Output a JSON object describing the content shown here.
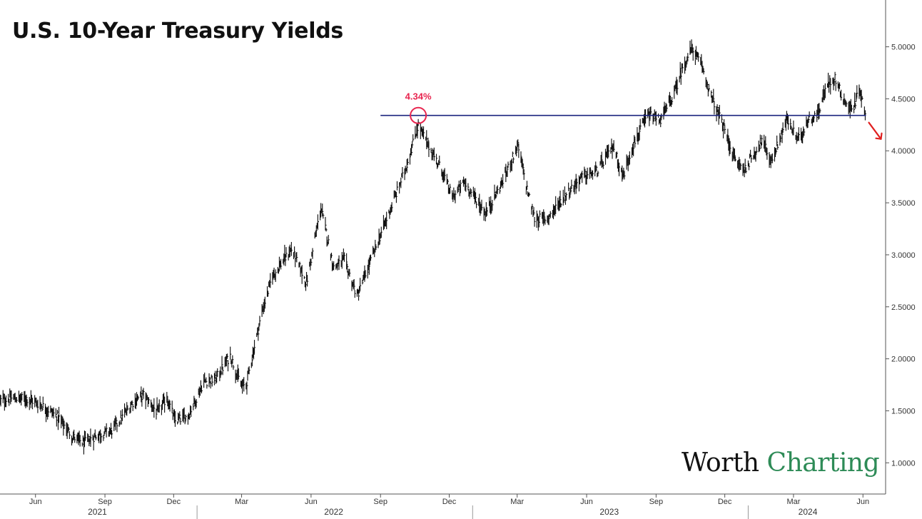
{
  "title": "U.S. 10-Year Treasury Yields",
  "watermark": {
    "part1": "Worth",
    "part2": "Charting",
    "color1": "#111111",
    "color2": "#2e8b57"
  },
  "colors": {
    "price": "#111111",
    "level_line": "#1a237e",
    "highlight": "#e8254f",
    "down_arrow": "#e02020",
    "axis": "#555555"
  },
  "chart_data": {
    "type": "line",
    "style": "daily high-low bar chart",
    "title": "U.S. 10-Year Treasury Yields",
    "xlabel": "",
    "ylabel": "",
    "y_axis_position": "right",
    "ylim": [
      0.7,
      5.45
    ],
    "y_ticks": [
      "1.0000",
      "1.5000",
      "2.0000",
      "2.5000",
      "3.0000",
      "3.5000",
      "4.0000",
      "4.5000",
      "5.0000"
    ],
    "x_range": [
      "2021-04-15",
      "2024-07-01"
    ],
    "x_ticks": [
      {
        "date": "2021-06-01",
        "label": "Jun"
      },
      {
        "date": "2021-09-01",
        "label": "Sep"
      },
      {
        "date": "2021-12-01",
        "label": "Dec"
      },
      {
        "date": "2022-03-01",
        "label": "Mar"
      },
      {
        "date": "2022-06-01",
        "label": "Jun"
      },
      {
        "date": "2022-09-01",
        "label": "Sep"
      },
      {
        "date": "2022-12-01",
        "label": "Dec"
      },
      {
        "date": "2023-03-01",
        "label": "Mar"
      },
      {
        "date": "2023-06-01",
        "label": "Jun"
      },
      {
        "date": "2023-09-01",
        "label": "Sep"
      },
      {
        "date": "2023-12-01",
        "label": "Dec"
      },
      {
        "date": "2024-03-01",
        "label": "Mar"
      },
      {
        "date": "2024-06-01",
        "label": "Jun"
      }
    ],
    "years": [
      {
        "label": "2021",
        "center": "2021-08-22"
      },
      {
        "label": "2022",
        "center": "2022-07-01"
      },
      {
        "label": "2023",
        "center": "2023-07-01"
      },
      {
        "label": "2024",
        "center": "2024-03-20"
      }
    ],
    "year_dividers": [
      "2022-01-01",
      "2023-01-01",
      "2024-01-01"
    ],
    "series": [
      {
        "x": [
          "2021-04-15",
          "2021-05-01",
          "2021-05-20",
          "2021-06-10",
          "2021-07-01",
          "2021-07-20",
          "2021-08-04",
          "2021-08-20",
          "2021-09-10",
          "2021-09-22",
          "2021-10-10",
          "2021-10-22",
          "2021-11-10",
          "2021-11-22",
          "2021-12-03",
          "2021-12-20",
          "2022-01-10",
          "2022-01-25",
          "2022-02-14",
          "2022-03-01",
          "2022-03-07",
          "2022-03-28",
          "2022-04-11",
          "2022-05-06",
          "2022-05-26",
          "2022-06-14",
          "2022-07-01",
          "2022-07-15",
          "2022-08-01",
          "2022-08-22",
          "2022-09-20",
          "2022-10-05",
          "2022-10-21",
          "2022-11-02",
          "2022-11-22",
          "2022-12-05",
          "2022-12-21",
          "2023-01-18",
          "2023-02-06",
          "2023-03-02",
          "2023-03-15",
          "2023-03-24",
          "2023-04-10",
          "2023-05-01",
          "2023-05-26",
          "2023-06-15",
          "2023-07-06",
          "2023-07-19",
          "2023-08-01",
          "2023-08-21",
          "2023-09-07",
          "2023-09-25",
          "2023-10-06",
          "2023-10-19",
          "2023-11-01",
          "2023-11-14",
          "2023-12-01",
          "2023-12-15",
          "2023-12-27",
          "2024-01-19",
          "2024-02-01",
          "2024-02-21",
          "2024-03-07",
          "2024-03-20",
          "2024-04-01",
          "2024-04-16",
          "2024-04-25",
          "2024-05-06",
          "2024-05-16",
          "2024-05-21",
          "2024-05-28",
          "2024-06-04"
        ],
        "values": [
          1.6,
          1.62,
          1.62,
          1.55,
          1.44,
          1.25,
          1.19,
          1.26,
          1.31,
          1.42,
          1.6,
          1.65,
          1.48,
          1.63,
          1.4,
          1.45,
          1.78,
          1.8,
          2.03,
          1.73,
          1.75,
          2.45,
          2.8,
          3.05,
          2.73,
          3.45,
          2.88,
          2.95,
          2.6,
          3.0,
          3.55,
          3.85,
          4.25,
          4.07,
          3.8,
          3.55,
          3.7,
          3.4,
          3.65,
          4.05,
          3.6,
          3.35,
          3.35,
          3.55,
          3.75,
          3.8,
          4.05,
          3.75,
          4.05,
          4.34,
          4.3,
          4.55,
          4.8,
          4.99,
          4.8,
          4.5,
          4.2,
          3.9,
          3.82,
          4.1,
          3.9,
          4.3,
          4.1,
          4.3,
          4.34,
          4.65,
          4.7,
          4.5,
          4.4,
          4.45,
          4.6,
          4.33
        ]
      }
    ],
    "annotations": [
      {
        "text": "4.34%",
        "date": "2022-10-21",
        "value": 4.34,
        "type": "circle-highlight"
      }
    ],
    "horizontal_line": {
      "value": 4.34,
      "from": "2022-09-01",
      "to": "2024-06-05"
    },
    "arrow": {
      "direction": "down-right"
    }
  }
}
